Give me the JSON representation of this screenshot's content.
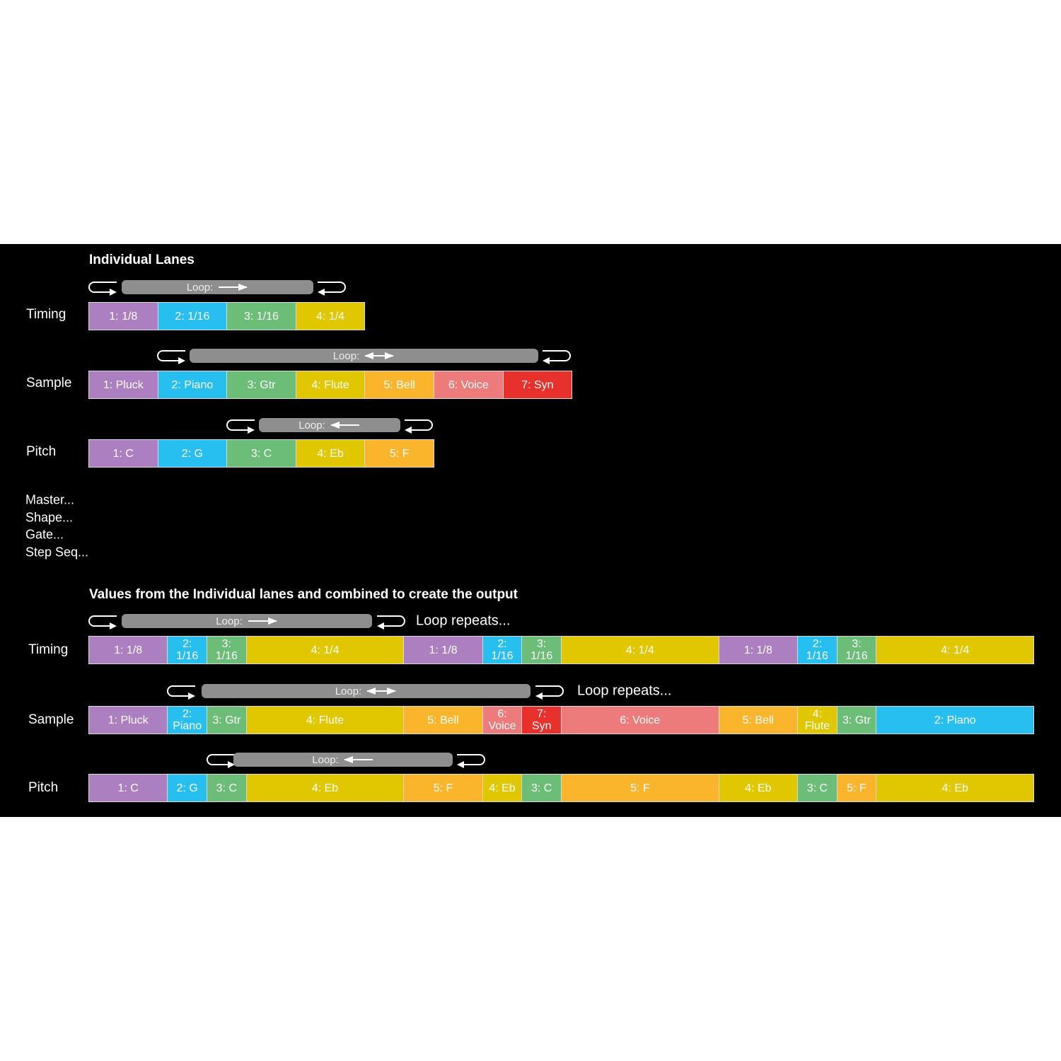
{
  "individual": {
    "title": "Individual Lanes",
    "lanes": [
      {
        "label": "Timing",
        "loop": "Loop:",
        "cells": [
          "1: 1/8",
          "2: 1/16",
          "3: 1/16",
          "4: 1/4"
        ]
      },
      {
        "label": "Sample",
        "loop": "Loop:",
        "cells": [
          "1: Pluck",
          "2: Piano",
          "3: Gtr",
          "4: Flute",
          "5: Bell",
          "6: Voice",
          "7: Syn"
        ]
      },
      {
        "label": "Pitch",
        "loop": "Loop:",
        "cells": [
          "1: C",
          "2: G",
          "3: C",
          "4: Eb",
          "5: F"
        ]
      }
    ]
  },
  "menu": [
    "Master...",
    "Shape...",
    "Gate...",
    "Step Seq..."
  ],
  "combined": {
    "title": "Values from the Individual lanes and combined to create the output",
    "lanes": [
      {
        "label": "Timing",
        "loop": "Loop:",
        "repeats": "Loop repeats...",
        "cells": [
          "1: 1/8",
          "2: 1/16",
          "3: 1/16",
          "4: 1/4",
          "1: 1/8",
          "2: 1/16",
          "3: 1/16",
          "4: 1/4",
          "1: 1/8",
          "2: 1/16",
          "3: 1/16",
          "4: 1/4"
        ]
      },
      {
        "label": "Sample",
        "loop": "Loop:",
        "repeats": "Loop repeats...",
        "cells": [
          "1: Pluck",
          "2: Piano",
          "3: Gtr",
          "4: Flute",
          "5: Bell",
          "6: Voice",
          "7: Syn",
          "6: Voice",
          "5: Bell",
          "4: Flute",
          "3: Gtr",
          "2: Piano"
        ]
      },
      {
        "label": "Pitch",
        "loop": "Loop:",
        "cells": [
          "1: C",
          "2: G",
          "3: C",
          "4: Eb",
          "5: F",
          "4: Eb",
          "3: C",
          "5: F",
          "4: Eb",
          "3: C",
          "5: F",
          "4: Eb"
        ]
      }
    ]
  }
}
